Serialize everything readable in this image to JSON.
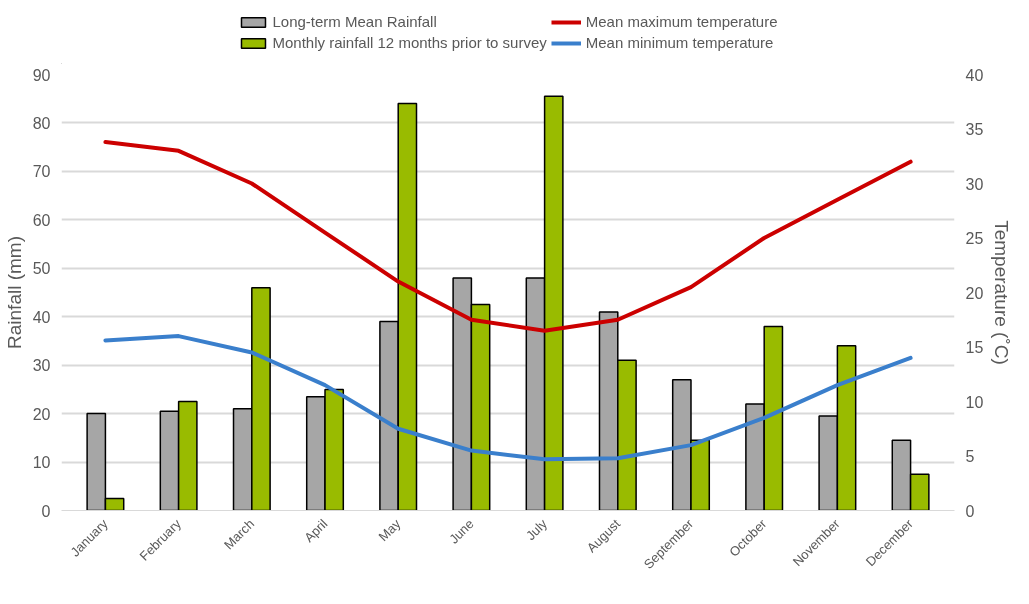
{
  "chart_data": {
    "type": "bar",
    "ylabel": "Rainfall (mm)",
    "y2label": "Temperature (˚C)",
    "categories": [
      "January",
      "February",
      "March",
      "April",
      "May",
      "June",
      "July",
      "August",
      "September",
      "October",
      "November",
      "December"
    ],
    "series": [
      {
        "name": "Long-term Mean Rainfall",
        "color": "#a6a6a6",
        "values": [
          20,
          20.5,
          21,
          23.5,
          39,
          48,
          48,
          41,
          27,
          22,
          19.5,
          14.5
        ]
      },
      {
        "name": "Monthly rainfall 12 months prior to survey",
        "color": "#99bb00",
        "values": [
          2.5,
          22.5,
          46,
          25,
          84,
          42.5,
          85.5,
          31,
          14.5,
          38,
          34,
          7.5
        ]
      },
      {
        "name": "Mean maximum temperature",
        "type": "line",
        "axis": "y2",
        "color": "#cc0000",
        "values": [
          33.8,
          33,
          30,
          25.5,
          21,
          17.5,
          16.5,
          17.5,
          20.5,
          25,
          28.5,
          32
        ]
      },
      {
        "name": "Mean minimum temperature",
        "type": "line",
        "axis": "y2",
        "color": "#3a7fcc",
        "values": [
          15.6,
          16,
          14.5,
          11.5,
          7.5,
          5.5,
          4.7,
          4.8,
          6,
          8.5,
          11.5,
          14
        ]
      }
    ],
    "ylim": [
      0,
      90
    ],
    "yticks": [
      0,
      10,
      20,
      30,
      40,
      50,
      60,
      70,
      80,
      90
    ],
    "y2lim": [
      0,
      40
    ],
    "y2ticks": [
      0,
      5,
      10,
      15,
      20,
      25,
      30,
      35,
      40
    ],
    "grid": "y",
    "legend": "top"
  }
}
